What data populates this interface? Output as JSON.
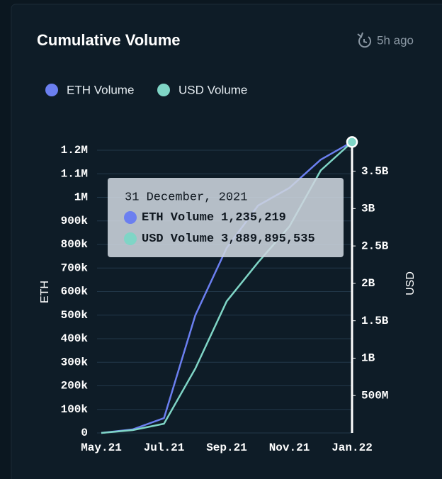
{
  "chart_data": {
    "type": "line",
    "title": "Cumulative Volume",
    "updated": "5h ago",
    "ylabel": "ETH",
    "y2label": "USD",
    "x": [
      "2021-05",
      "2021-06",
      "2021-07",
      "2021-08",
      "2021-09",
      "2021-10",
      "2021-11",
      "2021-12",
      "2022-01"
    ],
    "xticks": [
      {
        "value": "2021-05",
        "label": "May.21"
      },
      {
        "value": "2021-07",
        "label": "Jul.21"
      },
      {
        "value": "2021-09",
        "label": "Sep.21"
      },
      {
        "value": "2021-11",
        "label": "Nov.21"
      },
      {
        "value": "2022-01",
        "label": "Jan.22"
      }
    ],
    "series": [
      {
        "name": "ETH Volume",
        "color": "#6b7ff0",
        "values": [
          0,
          15000,
          63000,
          500000,
          785000,
          965000,
          1040000,
          1160000,
          1235219
        ]
      },
      {
        "name": "USD Volume",
        "color": "#7fd5c6",
        "axis": "y2",
        "values": [
          0,
          38000000,
          123000000,
          862000000,
          1760000000,
          2280000000,
          2760000000,
          3510000000,
          3889895535
        ]
      }
    ],
    "ylim": [
      0,
      1200000
    ],
    "yticks": [
      0,
      {
        "value": 100000,
        "label": "100k"
      },
      {
        "value": 200000,
        "label": "200k"
      },
      {
        "value": 300000,
        "label": "300k"
      },
      {
        "value": 400000,
        "label": "400k"
      },
      {
        "value": 500000,
        "label": "500k"
      },
      {
        "value": 600000,
        "label": "600k"
      },
      {
        "value": 700000,
        "label": "700k"
      },
      {
        "value": 800000,
        "label": "800k"
      },
      {
        "value": 900000,
        "label": "900k"
      },
      {
        "value": 1000000,
        "label": "1M"
      },
      {
        "value": 1100000,
        "label": "1.1M"
      },
      {
        "value": 1200000,
        "label": "1.2M"
      }
    ],
    "y2lim": [
      0,
      3780000000
    ],
    "y2ticks": [
      {
        "value": 500000000,
        "label": "500M"
      },
      {
        "value": 1000000000,
        "label": "1B"
      },
      {
        "value": 1500000000,
        "label": "1.5B"
      },
      {
        "value": 2000000000,
        "label": "2B"
      },
      {
        "value": 2500000000,
        "label": "2.5B"
      },
      {
        "value": 3000000000,
        "label": "3B"
      },
      {
        "value": 3500000000,
        "label": "3.5B"
      }
    ],
    "grid": true,
    "tooltip": {
      "title": "31 December, 2021",
      "items": [
        {
          "name": "ETH Volume",
          "value": 1235219,
          "label": "1,235,219"
        },
        {
          "name": "USD Volume",
          "value": 3889895535,
          "label": "3,889,895,535"
        }
      ]
    }
  }
}
